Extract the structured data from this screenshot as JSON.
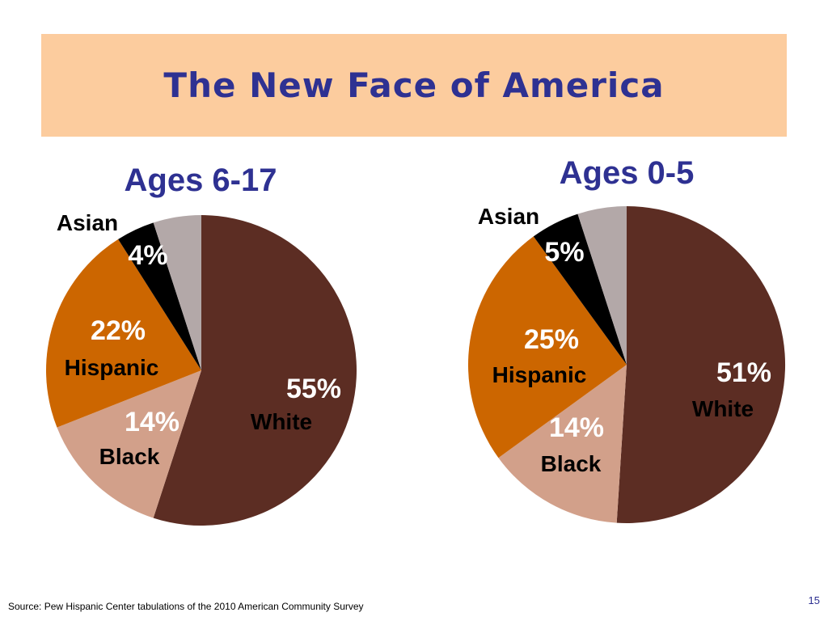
{
  "slide": {
    "title": "The New Face of America",
    "source": "Source: Pew Hispanic Center tabulations of the 2010 American Community Survey",
    "page_number": "15"
  },
  "colors": {
    "title": "#2e3192",
    "banner": "#fccc9e",
    "white": "#5c2d23",
    "black": "#d2a08a",
    "hispanic": "#cc6600",
    "asian": "#000000",
    "other": "#b3a8a8"
  },
  "chart_data": [
    {
      "type": "pie",
      "title": "Ages 6-17",
      "slices": [
        {
          "key": "white",
          "label": "White",
          "value": 55,
          "value_label": "55%"
        },
        {
          "key": "black",
          "label": "Black",
          "value": 14,
          "value_label": "14%"
        },
        {
          "key": "hispanic",
          "label": "Hispanic",
          "value": 22,
          "value_label": "22%"
        },
        {
          "key": "asian",
          "label": "Asian",
          "value": 4,
          "value_label": "4%"
        },
        {
          "key": "other",
          "label": "",
          "value": 5,
          "value_label": ""
        }
      ]
    },
    {
      "type": "pie",
      "title": "Ages 0-5",
      "slices": [
        {
          "key": "white",
          "label": "White",
          "value": 51,
          "value_label": "51%"
        },
        {
          "key": "black",
          "label": "Black",
          "value": 14,
          "value_label": "14%"
        },
        {
          "key": "hispanic",
          "label": "Hispanic",
          "value": 25,
          "value_label": "25%"
        },
        {
          "key": "asian",
          "label": "Asian",
          "value": 5,
          "value_label": "5%"
        },
        {
          "key": "other",
          "label": "",
          "value": 5,
          "value_label": ""
        }
      ]
    }
  ]
}
